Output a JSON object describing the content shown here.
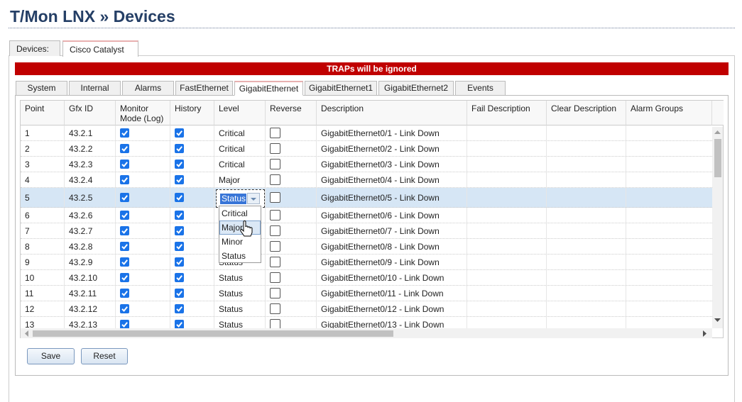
{
  "header": {
    "title": "T/Mon LNX » Devices"
  },
  "top_tabs": [
    "Devices:",
    "Cisco Catalyst"
  ],
  "banner": "TRAPs will be ignored",
  "sub_tabs": [
    "System",
    "Internal",
    "Alarms",
    "FastEthernet",
    "GigabitEthernet",
    "GigabitEthernet1",
    "GigabitEthernet2",
    "Events"
  ],
  "active_sub_tab": 4,
  "table": {
    "columns": [
      "Point",
      "Gfx ID",
      "Monitor Mode (Log)",
      "History",
      "Level",
      "Reverse",
      "Description",
      "Fail Description",
      "Clear Description",
      "Alarm Groups"
    ],
    "rows": [
      {
        "point": "1",
        "gfx_id": "43.2.1",
        "monitor": true,
        "history": true,
        "level": "Critical",
        "reverse": false,
        "description": "GigabitEthernet0/1 - Link Down"
      },
      {
        "point": "2",
        "gfx_id": "43.2.2",
        "monitor": true,
        "history": true,
        "level": "Critical",
        "reverse": false,
        "description": "GigabitEthernet0/2 - Link Down"
      },
      {
        "point": "3",
        "gfx_id": "43.2.3",
        "monitor": true,
        "history": true,
        "level": "Critical",
        "reverse": false,
        "description": "GigabitEthernet0/3 - Link Down"
      },
      {
        "point": "4",
        "gfx_id": "43.2.4",
        "monitor": true,
        "history": true,
        "level": "Major",
        "reverse": false,
        "description": "GigabitEthernet0/4 - Link Down"
      },
      {
        "point": "5",
        "gfx_id": "43.2.5",
        "monitor": true,
        "history": true,
        "level": "Status",
        "reverse": false,
        "description": "GigabitEthernet0/5 - Link Down"
      },
      {
        "point": "6",
        "gfx_id": "43.2.6",
        "monitor": true,
        "history": true,
        "level": null,
        "reverse": false,
        "description": "GigabitEthernet0/6 - Link Down"
      },
      {
        "point": "7",
        "gfx_id": "43.2.7",
        "monitor": true,
        "history": true,
        "level": null,
        "reverse": false,
        "description": "GigabitEthernet0/7 - Link Down"
      },
      {
        "point": "8",
        "gfx_id": "43.2.8",
        "monitor": true,
        "history": true,
        "level": null,
        "reverse": false,
        "description": "GigabitEthernet0/8 - Link Down"
      },
      {
        "point": "9",
        "gfx_id": "43.2.9",
        "monitor": true,
        "history": true,
        "level": "Status",
        "reverse": false,
        "description": "GigabitEthernet0/9 - Link Down"
      },
      {
        "point": "10",
        "gfx_id": "43.2.10",
        "monitor": true,
        "history": true,
        "level": "Status",
        "reverse": false,
        "description": "GigabitEthernet0/10 - Link Down"
      },
      {
        "point": "11",
        "gfx_id": "43.2.11",
        "monitor": true,
        "history": true,
        "level": "Status",
        "reverse": false,
        "description": "GigabitEthernet0/11 - Link Down"
      },
      {
        "point": "12",
        "gfx_id": "43.2.12",
        "monitor": true,
        "history": true,
        "level": "Status",
        "reverse": false,
        "description": "GigabitEthernet0/12 - Link Down"
      },
      {
        "point": "13",
        "gfx_id": "43.2.13",
        "monitor": true,
        "history": true,
        "level": "Status",
        "reverse": false,
        "description": "GigabitEthernet0/13 - Link Down"
      }
    ],
    "editing_row": 4,
    "level_options": [
      "Critical",
      "Major",
      "Minor",
      "Status"
    ],
    "hovered_option": 1
  },
  "buttons": [
    "Save",
    "Reset"
  ]
}
